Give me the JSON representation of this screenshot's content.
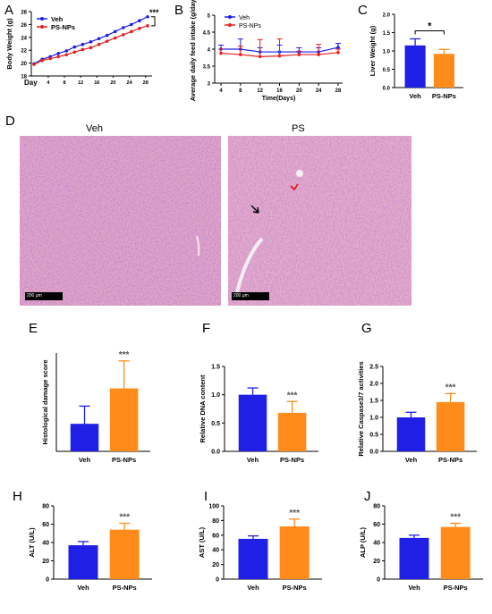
{
  "chart_data": [
    {
      "id": "A",
      "type": "line",
      "panel_letter": "A",
      "title": "",
      "xlabel": "Day",
      "ylabel": "Body Weight (g)",
      "x": [
        0,
        2,
        4,
        6,
        8,
        10,
        12,
        14,
        16,
        18,
        20,
        22,
        24,
        26,
        28
      ],
      "x_tick_labels": [
        "4",
        "8",
        "12",
        "16",
        "20",
        "24",
        "28"
      ],
      "ylim": [
        18,
        28
      ],
      "y_ticks": [
        18,
        20,
        22,
        24,
        26,
        28
      ],
      "legend": "top-left",
      "significance": "***",
      "series": [
        {
          "name": "Veh",
          "color": "#1f1fe6",
          "values": [
            19.9,
            20.6,
            21.0,
            21.5,
            21.9,
            22.5,
            22.9,
            23.3,
            23.8,
            24.3,
            24.9,
            25.5,
            26.0,
            26.6,
            27.2
          ]
        },
        {
          "name": "PS-NPs",
          "color": "#e61f1f",
          "values": [
            19.8,
            20.4,
            20.7,
            21.0,
            21.3,
            21.7,
            22.1,
            22.4,
            22.9,
            23.4,
            23.9,
            24.4,
            24.9,
            25.4,
            25.8
          ]
        }
      ]
    },
    {
      "id": "B",
      "type": "line",
      "panel_letter": "B",
      "title": "",
      "xlabel": "Time(Days)",
      "ylabel": "Average daily feed intake (g/day)",
      "x": [
        4,
        8,
        12,
        16,
        20,
        24,
        28
      ],
      "ylim": [
        3.0,
        5.0
      ],
      "y_ticks": [
        3.0,
        3.5,
        4.0,
        4.5,
        5.0
      ],
      "legend": "top-left",
      "series": [
        {
          "name": "Veh",
          "color": "#1f1fe6",
          "values": [
            4.0,
            4.0,
            3.92,
            3.92,
            3.92,
            3.92,
            4.05
          ],
          "err": [
            0.12,
            0.3,
            0.12,
            0.2,
            0.12,
            0.12,
            0.12
          ]
        },
        {
          "name": "PS-NPs",
          "color": "#e61f1f",
          "values": [
            3.88,
            3.84,
            3.78,
            3.8,
            3.84,
            3.84,
            3.9
          ],
          "err": [
            0.12,
            0.25,
            0.5,
            0.5,
            0.1,
            0.3,
            0.1
          ]
        }
      ]
    },
    {
      "id": "C",
      "type": "bar",
      "panel_letter": "C",
      "title": "",
      "xlabel": "",
      "ylabel": "Liver Weight (g)",
      "categories": [
        "Veh",
        "PS-NPs"
      ],
      "values": [
        1.15,
        0.92
      ],
      "err": [
        0.18,
        0.12
      ],
      "colors": [
        "#1f1fe6",
        "#ff8c1a"
      ],
      "ylim": [
        0.0,
        2.0
      ],
      "y_ticks": [
        0.0,
        0.5,
        1.0,
        1.5,
        2.0
      ],
      "tick_decimals": 1,
      "significance": "*",
      "bracket": true
    },
    {
      "id": "E",
      "type": "bar",
      "panel_letter": "E",
      "title": "",
      "xlabel": "",
      "ylabel": "Histological damage score",
      "categories": [
        "Veh",
        "PS-NPs"
      ],
      "values": [
        1.4,
        3.2
      ],
      "err": [
        0.9,
        1.4
      ],
      "colors": [
        "#1f1fe6",
        "#ff8c1a"
      ],
      "ylim": [
        0,
        5
      ],
      "y_ticks": [],
      "significance": "***"
    },
    {
      "id": "F",
      "type": "bar",
      "panel_letter": "F",
      "title": "",
      "xlabel": "",
      "ylabel": "Relative DNA content",
      "categories": [
        "Veh",
        "PS-NPs"
      ],
      "values": [
        1.0,
        0.68
      ],
      "err": [
        0.12,
        0.2
      ],
      "colors": [
        "#1f1fe6",
        "#ff8c1a"
      ],
      "ylim": [
        0.0,
        1.5
      ],
      "y_ticks": [
        0.0,
        0.5,
        1.0,
        1.5
      ],
      "tick_decimals": 1,
      "significance": "***"
    },
    {
      "id": "G",
      "type": "bar",
      "panel_letter": "G",
      "title": "",
      "xlabel": "",
      "ylabel": "Relative Caspase3/7 activities",
      "categories": [
        "Veh",
        "PS-NPs"
      ],
      "values": [
        1.0,
        1.45
      ],
      "err": [
        0.15,
        0.25
      ],
      "colors": [
        "#1f1fe6",
        "#ff8c1a"
      ],
      "ylim": [
        0.0,
        2.5
      ],
      "y_ticks": [
        0.0,
        0.5,
        1.0,
        1.5,
        2.0,
        2.5
      ],
      "tick_decimals": 1,
      "significance": "***"
    },
    {
      "id": "H",
      "type": "bar",
      "panel_letter": "H",
      "title": "",
      "xlabel": "",
      "ylabel": "ALT (U/L)",
      "categories": [
        "Veh",
        "PS-NPs"
      ],
      "values": [
        37,
        54
      ],
      "err": [
        4,
        7
      ],
      "colors": [
        "#1f1fe6",
        "#ff8c1a"
      ],
      "ylim": [
        0,
        80
      ],
      "y_ticks": [
        0,
        20,
        40,
        60,
        80
      ],
      "tick_decimals": 0,
      "significance": "***"
    },
    {
      "id": "I",
      "type": "bar",
      "panel_letter": "I",
      "title": "",
      "xlabel": "",
      "ylabel": "AST (U/L)",
      "categories": [
        "Veh",
        "PS-NPs"
      ],
      "values": [
        55,
        72
      ],
      "err": [
        4,
        10
      ],
      "colors": [
        "#1f1fe6",
        "#ff8c1a"
      ],
      "ylim": [
        0,
        100
      ],
      "y_ticks": [
        0,
        20,
        40,
        60,
        80,
        100
      ],
      "tick_decimals": 0,
      "significance": "***"
    },
    {
      "id": "J",
      "type": "bar",
      "panel_letter": "J",
      "title": "",
      "xlabel": "",
      "ylabel": "ALP (U/L)",
      "categories": [
        "Veh",
        "PS-NPs"
      ],
      "values": [
        45,
        57
      ],
      "err": [
        3,
        4
      ],
      "colors": [
        "#1f1fe6",
        "#ff8c1a"
      ],
      "ylim": [
        0,
        80
      ],
      "y_ticks": [
        0,
        20,
        40,
        60,
        80
      ],
      "tick_decimals": 0,
      "significance": "***"
    }
  ],
  "histology": {
    "panel_letter": "D",
    "images": [
      {
        "label": "Veh",
        "scale_bar": "200 μm"
      },
      {
        "label": "PS",
        "scale_bar": "200 μm"
      }
    ]
  }
}
